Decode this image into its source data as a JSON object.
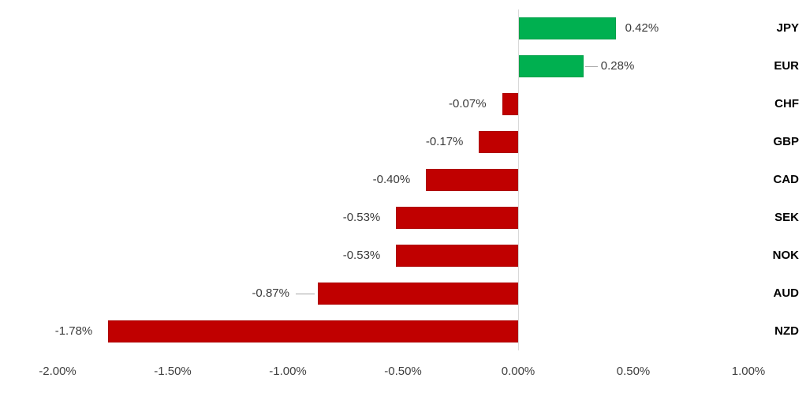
{
  "chart_data": {
    "type": "bar",
    "orientation": "horizontal",
    "title": "",
    "unit": "%",
    "grid": false,
    "legend": "none",
    "categories": [
      "JPY",
      "EUR",
      "CHF",
      "GBP",
      "CAD",
      "SEK",
      "NOK",
      "AUD",
      "NZD"
    ],
    "values": [
      0.42,
      0.28,
      -0.07,
      -0.17,
      -0.4,
      -0.53,
      -0.53,
      -0.87,
      -1.78
    ],
    "data_labels": [
      "0.42%",
      "0.28%",
      "-0.07%",
      "-0.17%",
      "-0.40%",
      "-0.53%",
      "-0.53%",
      "-0.87%",
      "-1.78%"
    ],
    "leader_line_categories": [
      "EUR",
      "AUD"
    ],
    "x_ticks": [
      "-2.00%",
      "-1.50%",
      "-1.00%",
      "-0.50%",
      "0.00%",
      "0.50%",
      "1.00%"
    ],
    "x_tick_values": [
      -2.0,
      -1.5,
      -1.0,
      -0.5,
      0.0,
      0.5,
      1.0
    ],
    "xlim": [
      -2.25,
      1.25
    ],
    "colors": {
      "positive": "#00B050",
      "positive_border": "#00A048",
      "negative": "#C00000",
      "negative_border": "#AD0000",
      "axis_line": "#D9D9D9",
      "leader_line": "#A6A6A6",
      "tick_label": "#404040",
      "data_label": "#3B3B3B",
      "category_label": "#000000",
      "background": "#FFFFFF"
    }
  }
}
